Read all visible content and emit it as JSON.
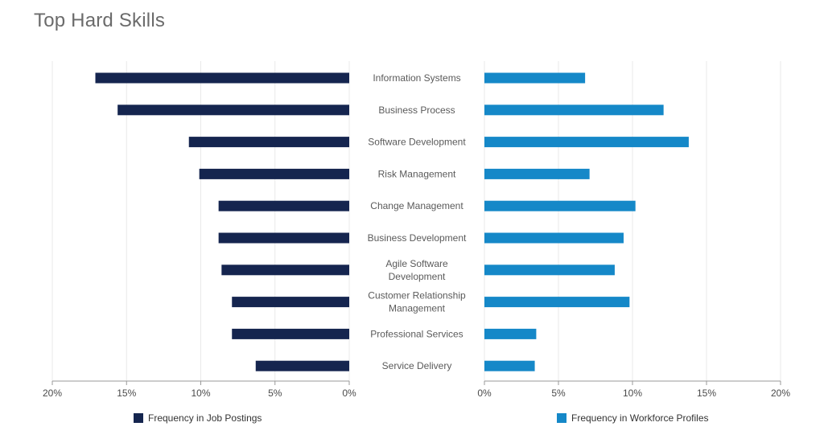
{
  "title": "Top Hard Skills",
  "colors": {
    "left": "#15254f",
    "right": "#1588c8",
    "grid": "#e9e9e9",
    "axis": "#999999"
  },
  "chart_data": {
    "type": "bar",
    "categories": [
      [
        "Information Systems"
      ],
      [
        "Business Process"
      ],
      [
        "Software Development"
      ],
      [
        "Risk Management"
      ],
      [
        "Change Management"
      ],
      [
        "Business Development"
      ],
      [
        "Agile Software",
        "Development"
      ],
      [
        "Customer Relationship",
        "Management"
      ],
      [
        "Professional Services"
      ],
      [
        "Service Delivery"
      ]
    ],
    "series": [
      {
        "name": "Frequency in Job Postings",
        "values": [
          17.1,
          15.6,
          10.8,
          10.1,
          8.8,
          8.8,
          8.6,
          7.9,
          7.9,
          6.3
        ]
      },
      {
        "name": "Frequency in Workforce Profiles",
        "values": [
          6.8,
          12.1,
          13.8,
          7.1,
          10.2,
          9.4,
          8.8,
          9.8,
          3.5,
          3.4
        ]
      }
    ],
    "xlim": [
      0,
      20
    ],
    "x_ticks": [
      "20%",
      "15%",
      "10%",
      "5%",
      "0%"
    ],
    "x_ticks_right": [
      "0%",
      "5%",
      "10%",
      "15%",
      "20%"
    ]
  },
  "legend": {
    "left_label": "Frequency in Job Postings",
    "right_label": "Frequency in Workforce Profiles"
  }
}
